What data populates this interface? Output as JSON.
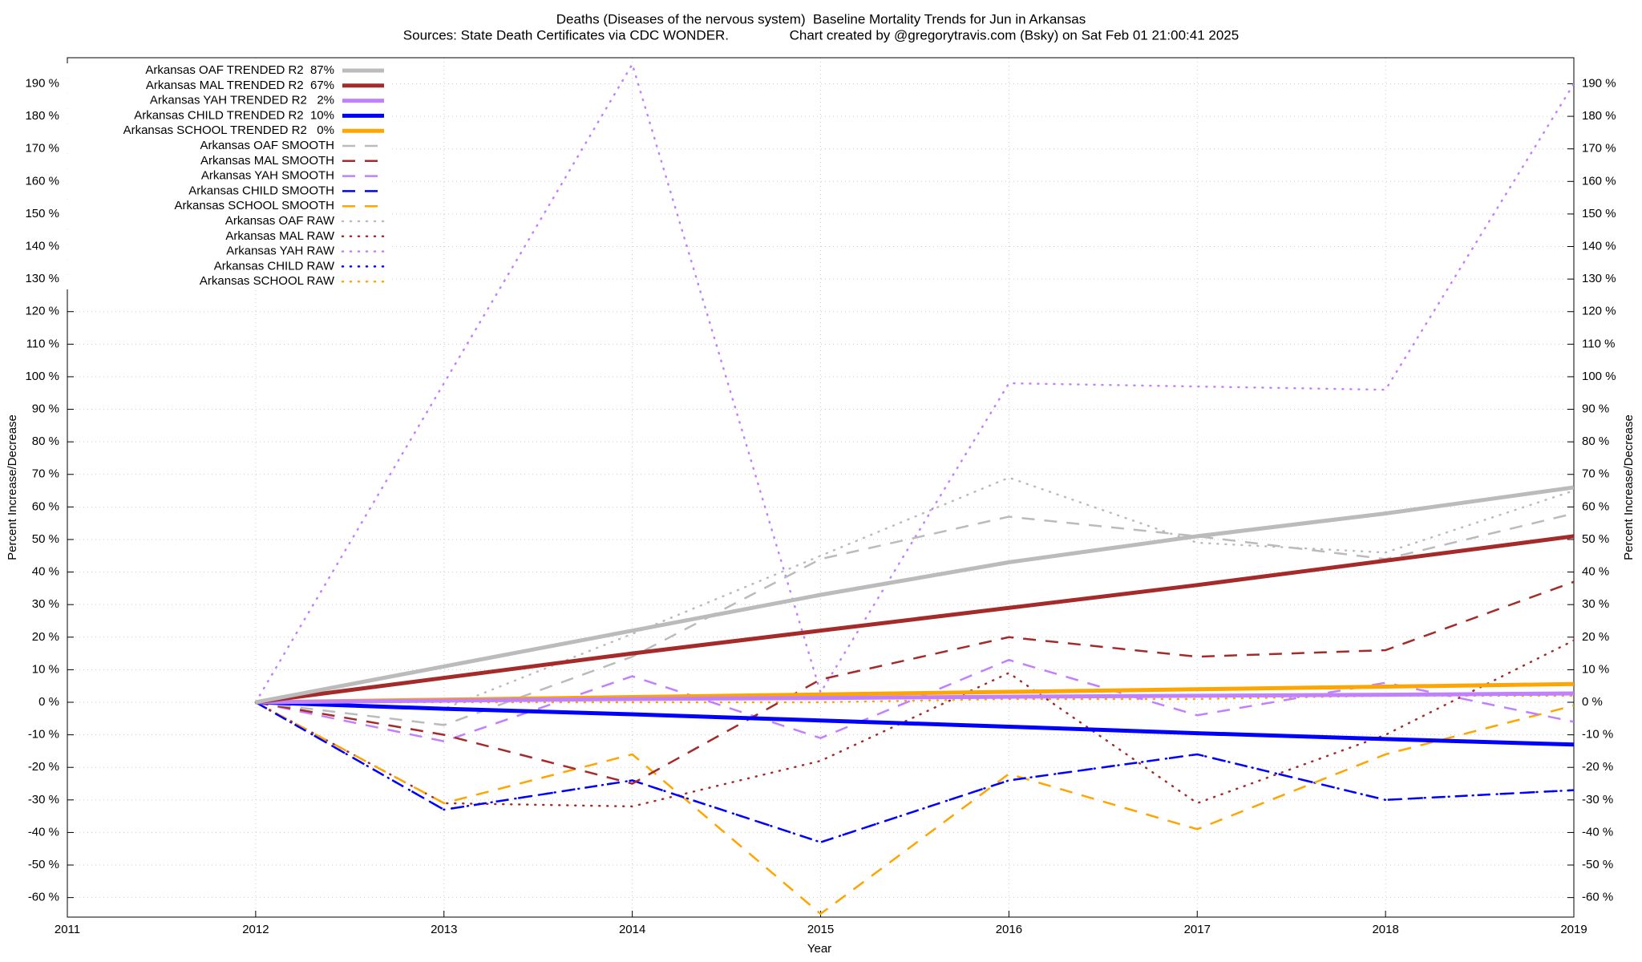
{
  "chart_data": {
    "type": "line",
    "title": "Deaths (Diseases of the nervous system)  Baseline Mortality Trends for Jun in Arkansas",
    "subtitle": "Sources: State Death Certificates via CDC WONDER.                Chart created by @gregorytravis.com (Bsky) on Sat Feb 01 21:00:41 2025",
    "x_label": "Year",
    "y_label": "Percent Increase/Decrease",
    "y2_label": "Percent Increase/Decrease",
    "grid": true,
    "legend": "top left",
    "xlim": [
      2011,
      2019
    ],
    "xticks": [
      2011,
      2012,
      2013,
      2014,
      2015,
      2016,
      2017,
      2018,
      2019
    ],
    "ylim": [
      -66,
      198
    ],
    "yticks": [
      {
        "value": -60,
        "label": "-60 %"
      },
      {
        "value": -50,
        "label": "-50 %"
      },
      {
        "value": -40,
        "label": "-40 %"
      },
      {
        "value": -30,
        "label": "-30 %"
      },
      {
        "value": -20,
        "label": "-20 %"
      },
      {
        "value": -10,
        "label": "-10 %"
      },
      {
        "value": 0,
        "label": "0 %"
      },
      {
        "value": 10,
        "label": "10 %"
      },
      {
        "value": 20,
        "label": "20 %"
      },
      {
        "value": 30,
        "label": "30 %"
      },
      {
        "value": 40,
        "label": "40 %"
      },
      {
        "value": 50,
        "label": "50 %"
      },
      {
        "value": 60,
        "label": "60 %"
      },
      {
        "value": 70,
        "label": "70 %"
      },
      {
        "value": 80,
        "label": "80 %"
      },
      {
        "value": 90,
        "label": "90 %"
      },
      {
        "value": 100,
        "label": "100 %"
      },
      {
        "value": 110,
        "label": "110 %"
      },
      {
        "value": 120,
        "label": "120 %"
      },
      {
        "value": 130,
        "label": "130 %"
      },
      {
        "value": 140,
        "label": "140 %"
      },
      {
        "value": 150,
        "label": "150 %"
      },
      {
        "value": 160,
        "label": "160 %"
      },
      {
        "value": 170,
        "label": "170 %"
      },
      {
        "value": 180,
        "label": "180 %"
      },
      {
        "value": 190,
        "label": "190 %"
      }
    ],
    "x": [
      2012,
      2013,
      2014,
      2015,
      2016,
      2017,
      2018,
      2019
    ],
    "series": [
      {
        "name": "Arkansas OAF TRENDED R2  87%",
        "color": "#bbbbbb",
        "style": "solid",
        "values": [
          0,
          11,
          22,
          33,
          43,
          51,
          58,
          66
        ]
      },
      {
        "name": "Arkansas MAL TRENDED R2  67%",
        "color": "#a52a2a",
        "style": "solid",
        "values": [
          0,
          7.5,
          15,
          22,
          29,
          36,
          43.5,
          51
        ]
      },
      {
        "name": "Arkansas YAH TRENDED R2   2%",
        "color": "#c080ff",
        "style": "solid",
        "values": [
          0,
          0.5,
          1,
          1.3,
          1.7,
          2,
          2.3,
          2.7
        ]
      },
      {
        "name": "Arkansas CHILD TRENDED R2  10%",
        "color": "#0000ff",
        "style": "solid",
        "values": [
          0,
          -2,
          -3.7,
          -5.6,
          -7.5,
          -9.5,
          -11.3,
          -13
        ]
      },
      {
        "name": "Arkansas SCHOOL TRENDED R2   0%",
        "color": "#ffa500",
        "style": "solid",
        "values": [
          0,
          0.8,
          1.6,
          2.4,
          3.2,
          4,
          4.8,
          5.6
        ]
      },
      {
        "name": "Arkansas OAF SMOOTH",
        "color": "#bbbbbb",
        "style": "dashed",
        "values": [
          0,
          -7,
          14,
          44,
          57,
          51,
          44,
          58
        ]
      },
      {
        "name": "Arkansas MAL SMOOTH",
        "color": "#a52a2a",
        "style": "dashed",
        "values": [
          0,
          -10,
          -25,
          7,
          20,
          14,
          16,
          37
        ]
      },
      {
        "name": "Arkansas YAH SMOOTH",
        "color": "#c080ff",
        "style": "dashed",
        "values": [
          0,
          -12,
          8,
          -11,
          13,
          -4,
          6,
          -6
        ]
      },
      {
        "name": "Arkansas CHILD SMOOTH",
        "color": "#0000ff",
        "style": "dashed",
        "values": [
          0,
          -33,
          -24,
          -43,
          -24,
          -16,
          -30,
          -27
        ]
      },
      {
        "name": "Arkansas SCHOOL SMOOTH",
        "color": "#ffa500",
        "style": "dashed",
        "values": [
          0,
          -31,
          -16,
          -65,
          -22,
          -39,
          -16,
          -1
        ]
      },
      {
        "name": "Arkansas OAF RAW",
        "color": "#bbbbbb",
        "style": "dotted",
        "values": [
          0,
          -2,
          21,
          45,
          69,
          49,
          46,
          65
        ]
      },
      {
        "name": "Arkansas MAL RAW",
        "color": "#a52a2a",
        "style": "dotted",
        "values": [
          0,
          -31,
          -32,
          -18,
          9,
          -31,
          -10,
          19
        ]
      },
      {
        "name": "Arkansas YAH RAW",
        "color": "#c080ff",
        "style": "dotted",
        "values": [
          0,
          98,
          196,
          3,
          98,
          97,
          96,
          190
        ]
      },
      {
        "name": "Arkansas CHILD RAW",
        "color": "#0000ff",
        "style": "dotted",
        "values": [
          0,
          -33,
          -24,
          -43,
          -24,
          -16,
          -30,
          -27
        ]
      },
      {
        "name": "Arkansas SCHOOL RAW",
        "color": "#ffa500",
        "style": "dotted",
        "values": [
          0,
          0,
          0,
          0,
          1,
          1,
          2,
          2
        ]
      }
    ]
  }
}
